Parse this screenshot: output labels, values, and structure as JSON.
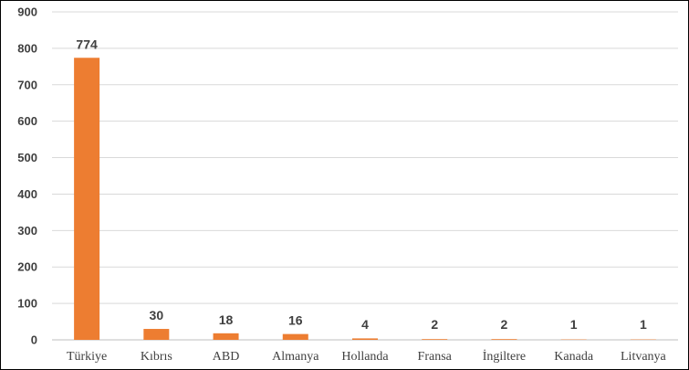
{
  "chart_data": {
    "type": "bar",
    "categories": [
      "Türkiye",
      "Kıbrıs",
      "ABD",
      "Almanya",
      "Hollanda",
      "Fransa",
      "İngiltere",
      "Kanada",
      "Litvanya"
    ],
    "values": [
      774,
      30,
      18,
      16,
      4,
      2,
      2,
      1,
      1
    ],
    "data_labels": [
      "774",
      "30",
      "18",
      "16",
      "4",
      "2",
      "2",
      "1",
      "1"
    ],
    "title": "",
    "xlabel": "",
    "ylabel": "",
    "ylim": [
      0,
      900
    ],
    "yticks": [
      "0",
      "100",
      "200",
      "300",
      "400",
      "500",
      "600",
      "700",
      "800",
      "900"
    ],
    "grid": "horizontal",
    "legend": "none",
    "bar_color": "#ED7D31",
    "grid_color": "#D9D9D9"
  }
}
